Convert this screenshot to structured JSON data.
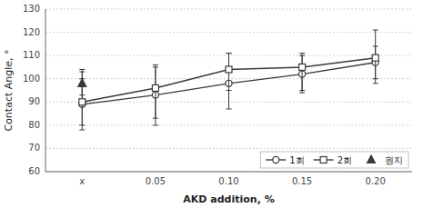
{
  "chart_data": {
    "type": "line",
    "xlabel": "AKD addition, %",
    "ylabel": "Contact Angle, °",
    "categories": [
      "x",
      "0.05",
      "0.10",
      "0.15",
      "0.20"
    ],
    "series": [
      {
        "name": "1회",
        "color": "#3a3a3a",
        "marker": "circle",
        "line_style": "solid",
        "values": [
          89,
          93,
          98,
          102,
          107
        ],
        "yerr_lo": [
          11,
          13,
          11,
          8,
          7
        ],
        "yerr_hi": [
          11,
          13,
          13,
          8,
          7
        ]
      },
      {
        "name": "2회",
        "color": "#3a3a3a",
        "marker": "square",
        "line_style": "solid",
        "values": [
          90,
          96,
          104,
          105,
          109
        ],
        "yerr_lo": [
          10,
          13,
          9,
          10,
          11
        ],
        "yerr_hi": [
          14,
          9,
          7,
          6,
          12
        ]
      },
      {
        "name": "원지",
        "color": "#3a3a3a",
        "marker": "triangle",
        "line_style": "none",
        "values": [
          98,
          null,
          null,
          null,
          null
        ],
        "yerr_lo": [
          5,
          null,
          null,
          null,
          null
        ],
        "yerr_hi": [
          5,
          null,
          null,
          null,
          null
        ]
      }
    ],
    "ylim": [
      60,
      130
    ],
    "yticks": [
      60,
      70,
      80,
      90,
      100,
      110,
      120,
      130
    ],
    "grid": true,
    "legend": "lower right"
  }
}
